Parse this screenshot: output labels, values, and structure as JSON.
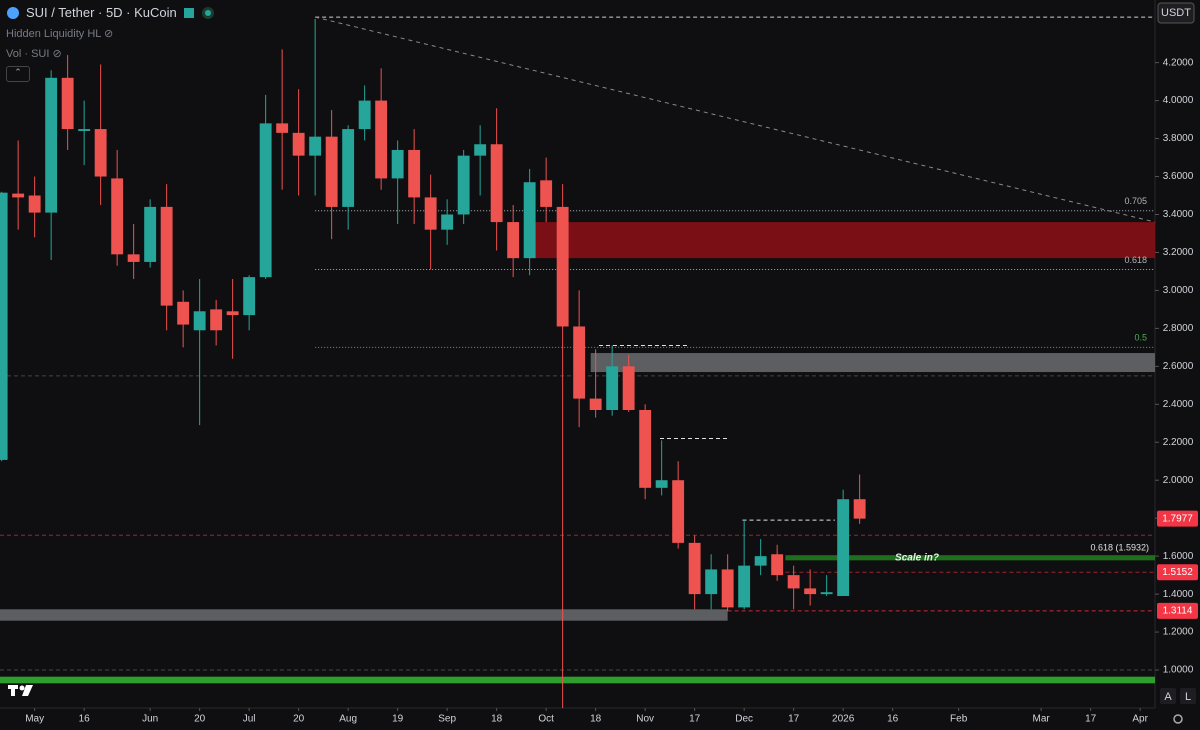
{
  "chart_data": {
    "type": "candlestick",
    "title": "SUI / Tether · 5D · KuCoin",
    "indicators": [
      "Hidden Liquidity HL",
      "Vol · SUI"
    ],
    "currency": "USDT",
    "x": [
      0,
      1,
      2,
      3,
      4,
      5,
      6,
      7,
      8,
      9,
      10,
      11,
      12,
      13,
      14,
      15,
      16,
      17,
      18,
      19,
      20,
      21,
      22,
      23,
      24,
      25,
      26,
      27,
      28,
      29,
      30,
      31,
      32,
      33,
      34,
      35,
      36,
      37,
      38,
      39,
      40,
      41,
      42,
      43,
      44,
      45,
      46,
      47,
      48,
      49,
      50,
      51,
      52
    ],
    "open": [
      2.107,
      3.51,
      3.5,
      3.41,
      4.12,
      3.84,
      3.85,
      3.59,
      3.19,
      3.15,
      3.44,
      2.94,
      2.79,
      2.9,
      2.89,
      2.87,
      3.07,
      3.88,
      3.83,
      3.71,
      3.81,
      3.44,
      3.85,
      4.0,
      3.59,
      3.74,
      3.49,
      3.32,
      3.4,
      3.71,
      3.77,
      3.36,
      3.17,
      3.58,
      3.44,
      2.81,
      2.43,
      2.37,
      2.6,
      2.37,
      1.96,
      2.0,
      1.67,
      1.4,
      1.53,
      1.33,
      1.55,
      1.61,
      1.5,
      1.43,
      1.4,
      1.39,
      1.9
    ],
    "high": [
      3.52,
      3.79,
      3.6,
      4.16,
      4.24,
      4.0,
      4.19,
      3.74,
      3.35,
      3.48,
      3.56,
      3.0,
      3.06,
      2.95,
      3.06,
      3.08,
      4.03,
      4.27,
      4.06,
      4.43,
      3.95,
      3.87,
      4.08,
      4.17,
      3.79,
      3.85,
      3.61,
      3.48,
      3.74,
      3.87,
      3.96,
      3.45,
      3.64,
      3.7,
      3.56,
      3.0,
      2.69,
      2.71,
      2.66,
      2.4,
      2.21,
      2.1,
      1.71,
      1.61,
      1.61,
      1.79,
      1.69,
      1.66,
      1.55,
      1.53,
      1.5,
      1.95,
      2.03
    ],
    "low": [
      2.1,
      3.32,
      3.28,
      3.16,
      3.74,
      3.66,
      3.45,
      3.13,
      3.06,
      3.12,
      2.79,
      2.7,
      2.29,
      2.71,
      2.64,
      2.79,
      3.06,
      3.53,
      3.5,
      3.5,
      3.27,
      3.32,
      3.79,
      3.53,
      3.35,
      3.35,
      3.11,
      3.24,
      3.35,
      3.5,
      3.21,
      3.07,
      3.08,
      3.36,
      0.8,
      2.28,
      2.33,
      2.34,
      2.36,
      1.9,
      1.92,
      1.64,
      1.32,
      1.32,
      1.31,
      1.32,
      1.5,
      1.47,
      1.32,
      1.34,
      1.39,
      1.39,
      1.77
    ],
    "close": [
      3.515,
      3.49,
      3.41,
      4.12,
      3.85,
      3.85,
      3.6,
      3.19,
      3.15,
      3.44,
      2.92,
      2.82,
      2.89,
      2.79,
      2.87,
      3.07,
      3.88,
      3.83,
      3.71,
      3.81,
      3.44,
      3.85,
      4.0,
      3.59,
      3.74,
      3.49,
      3.32,
      3.4,
      3.71,
      3.77,
      3.36,
      3.17,
      3.57,
      3.44,
      2.81,
      2.43,
      2.37,
      2.6,
      2.37,
      1.96,
      2.0,
      1.67,
      1.4,
      1.53,
      1.33,
      1.55,
      1.6,
      1.5,
      1.43,
      1.4,
      1.41,
      1.9,
      1.7977
    ],
    "up_color": "#26a69a",
    "down_color": "#ef5350",
    "xlim": [
      -0.1,
      69.9
    ],
    "ylim": [
      0.8,
      4.53
    ],
    "xticks": [
      {
        "value": 2,
        "label": "May"
      },
      {
        "value": 5,
        "label": "16"
      },
      {
        "value": 9,
        "label": "Jun"
      },
      {
        "value": 12,
        "label": "20"
      },
      {
        "value": 15,
        "label": "Jul"
      },
      {
        "value": 18,
        "label": "20"
      },
      {
        "value": 21,
        "label": "Aug"
      },
      {
        "value": 24,
        "label": "19"
      },
      {
        "value": 27,
        "label": "Sep"
      },
      {
        "value": 30,
        "label": "18"
      },
      {
        "value": 33,
        "label": "Oct"
      },
      {
        "value": 36,
        "label": "18"
      },
      {
        "value": 39,
        "label": "Nov"
      },
      {
        "value": 42,
        "label": "17"
      },
      {
        "value": 45,
        "label": "Dec"
      },
      {
        "value": 48,
        "label": "17"
      },
      {
        "value": 51,
        "label": "2026"
      },
      {
        "value": 54,
        "label": "16"
      },
      {
        "value": 58,
        "label": "Feb"
      },
      {
        "value": 63,
        "label": "Mar"
      },
      {
        "value": 66,
        "label": "17"
      },
      {
        "value": 69,
        "label": "Apr"
      }
    ],
    "yticks": [
      {
        "value": 1.0,
        "label": "1.0000"
      },
      {
        "value": 1.2,
        "label": "1.2000"
      },
      {
        "value": 1.4,
        "label": "1.4000"
      },
      {
        "value": 1.6,
        "label": "1.6000"
      },
      {
        "value": 1.8,
        "label": "1.8000"
      },
      {
        "value": 2.0,
        "label": "2.0000"
      },
      {
        "value": 2.2,
        "label": "2.2000"
      },
      {
        "value": 2.4,
        "label": "2.4000"
      },
      {
        "value": 2.6,
        "label": "2.6000"
      },
      {
        "value": 2.8,
        "label": "2.8000"
      },
      {
        "value": 3.0,
        "label": "3.0000"
      },
      {
        "value": 3.2,
        "label": "3.2000"
      },
      {
        "value": 3.4,
        "label": "3.4000"
      },
      {
        "value": 3.6,
        "label": "3.6000"
      },
      {
        "value": 3.8,
        "label": "3.8000"
      },
      {
        "value": 4.0,
        "label": "4.0000"
      },
      {
        "value": 4.2,
        "label": "4.2000"
      }
    ],
    "price_labels": [
      1.7977,
      1.5152,
      1.3114
    ],
    "price_label_color": "#f23645",
    "zones": [
      {
        "low": 3.17,
        "high": 3.36,
        "from": 32,
        "color": "#7a0f15"
      },
      {
        "low": 2.57,
        "high": 2.67,
        "from": 35.7,
        "color": "#5d5e62"
      },
      {
        "low": 1.26,
        "high": 1.32,
        "to": 44,
        "color": "#5d5e62"
      },
      {
        "low": 1.578,
        "high": 1.605,
        "from": 47.5,
        "color": "#1e6e1e",
        "label": "0.618 (1.5932)",
        "note": "Scale in?"
      },
      {
        "low": 0.93,
        "high": 0.965,
        "color": "#2e9e2e"
      }
    ],
    "fib_levels": [
      {
        "value": 3.42,
        "label": "0.705",
        "from": 19,
        "color": "#b0b3b8"
      },
      {
        "value": 3.11,
        "label": "0.618",
        "from": 19,
        "color": "#b0b3b8"
      },
      {
        "value": 2.7,
        "label": "0.5",
        "from": 19,
        "color": "#4caf50"
      }
    ],
    "levels": [
      {
        "value": 4.44,
        "from": 19,
        "color": "#cfcfcf"
      },
      {
        "value": 2.55,
        "color": "#444"
      },
      {
        "value": 1.71,
        "color": "#9c2430"
      },
      {
        "value": 1.0,
        "color": "#444"
      },
      {
        "value": 1.5152,
        "from": 47.5,
        "color": "#9c2430"
      },
      {
        "value": 1.3114,
        "from": 44,
        "color": "#c42b38"
      },
      {
        "value": 2.71,
        "from": 36.2,
        "to": 41.7,
        "color": "#e0e0e0"
      },
      {
        "value": 2.22,
        "from": 39.9,
        "to": 44,
        "color": "#e0e0e0"
      },
      {
        "value": 1.79,
        "from": 44.9,
        "to": 50.5,
        "color": "#e0e0e0"
      }
    ],
    "trendline": {
      "x": [
        19,
        69.9
      ],
      "y": [
        4.44,
        3.36
      ],
      "color": "#8a8a8a"
    }
  }
}
